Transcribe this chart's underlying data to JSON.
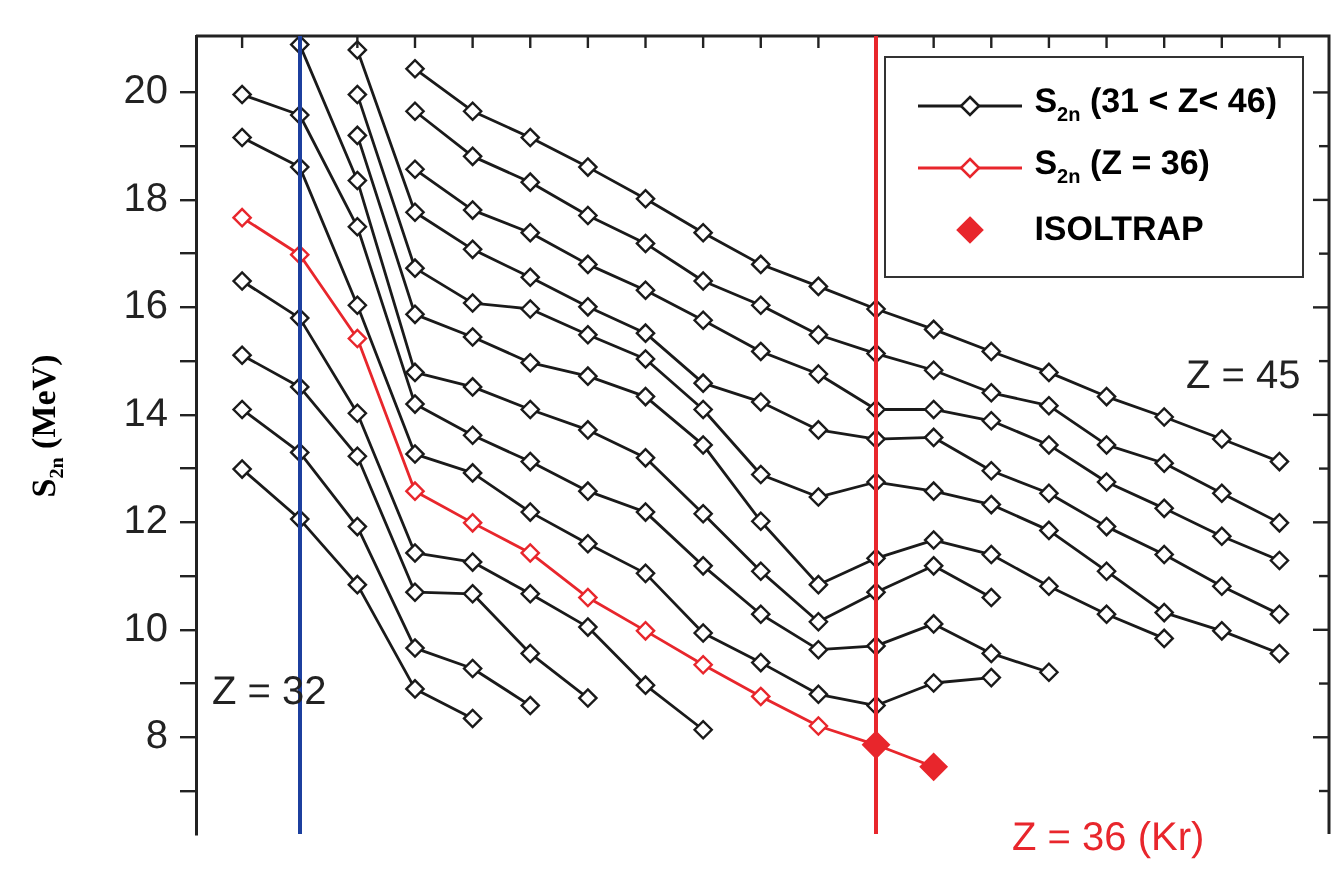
{
  "chart_data": {
    "type": "line",
    "ylabel": "S$_{2n}$ (MeV)",
    "categories": [
      null,
      null,
      null,
      null,
      null,
      null,
      null,
      null,
      null,
      null,
      null,
      null,
      null,
      null,
      null,
      null,
      null,
      null,
      null
    ],
    "series": [
      {
        "name": "S$_{2n}$ (31 < Z< 46)",
        "color": "#1a1a1a",
        "values": [
          null,
          null,
          null,
          20.44,
          19.65,
          19.16,
          18.61,
          18.02,
          17.39,
          16.8,
          16.39,
          15.97,
          15.59,
          15.18,
          14.79,
          14.34,
          13.96,
          13.55,
          13.13
        ]
      },
      {
        "color": "#1a1a1a",
        "values": [
          null,
          null,
          null,
          19.65,
          18.81,
          18.33,
          17.71,
          17.19,
          16.49,
          16.04,
          15.49,
          15.14,
          14.83,
          14.41,
          14.17,
          13.44,
          13.1,
          12.54,
          11.99
        ]
      },
      {
        "color": "#1a1a1a",
        "values": [
          null,
          null,
          null,
          18.57,
          17.81,
          17.39,
          16.8,
          16.32,
          15.76,
          15.18,
          14.76,
          14.1,
          14.1,
          13.89,
          13.44,
          12.75,
          12.26,
          11.74,
          11.29
        ]
      },
      {
        "color": "#1a1a1a",
        "values": [
          null,
          null,
          20.79,
          17.77,
          17.08,
          16.56,
          16.01,
          15.52,
          14.59,
          14.24,
          13.72,
          13.55,
          13.58,
          12.96,
          12.54,
          11.92,
          11.4,
          10.81,
          10.29
        ]
      },
      {
        "color": "#1a1a1a",
        "values": [
          null,
          null,
          19.96,
          16.73,
          16.08,
          15.97,
          15.49,
          15.04,
          14.1,
          12.89,
          12.47,
          12.75,
          12.58,
          12.33,
          11.85,
          11.09,
          10.32,
          9.98,
          9.56
        ]
      },
      {
        "color": "#1a1a1a",
        "values": [
          null,
          null,
          19.2,
          15.87,
          15.45,
          14.97,
          14.72,
          14.34,
          13.44,
          12.02,
          10.84,
          11.33,
          11.67,
          11.4,
          10.81,
          10.29,
          9.84,
          null,
          null
        ]
      },
      {
        "color": "#1a1a1a",
        "values": [
          null,
          20.89,
          18.36,
          14.79,
          14.52,
          14.1,
          13.72,
          13.2,
          12.16,
          11.09,
          10.15,
          10.7,
          11.19,
          10.6,
          null,
          null,
          null,
          null,
          null
        ]
      },
      {
        "color": "#1a1a1a",
        "values": [
          19.96,
          19.58,
          17.5,
          14.2,
          13.62,
          13.13,
          12.58,
          12.19,
          11.19,
          10.29,
          9.63,
          9.7,
          10.11,
          9.56,
          9.21,
          null,
          null,
          null,
          null
        ]
      },
      {
        "color": "#1a1a1a",
        "values": [
          19.16,
          18.61,
          16.04,
          13.27,
          12.92,
          12.19,
          11.6,
          11.05,
          9.94,
          9.39,
          8.8,
          8.59,
          9.01,
          9.11,
          null,
          null,
          null,
          null,
          null
        ]
      },
      {
        "name": "S$_{2n}$ (Z = 36)",
        "color": "#e8262c",
        "values": [
          17.67,
          16.98,
          15.42,
          12.58,
          11.99,
          11.43,
          10.6,
          9.98,
          9.35,
          8.76,
          8.21,
          7.86,
          7.45,
          null,
          null,
          null,
          null,
          null,
          null
        ]
      },
      {
        "color": "#1a1a1a",
        "values": [
          16.49,
          15.8,
          14.03,
          11.43,
          11.26,
          10.67,
          10.05,
          8.97,
          8.14,
          null,
          null,
          null,
          null,
          null,
          null,
          null,
          null,
          null,
          null
        ]
      },
      {
        "color": "#1a1a1a",
        "values": [
          15.11,
          14.52,
          13.23,
          10.7,
          10.67,
          9.56,
          8.73,
          null,
          null,
          null,
          null,
          null,
          null,
          null,
          null,
          null,
          null,
          null,
          null
        ]
      },
      {
        "color": "#1a1a1a",
        "values": [
          14.1,
          13.3,
          11.92,
          9.66,
          9.28,
          8.59,
          null,
          null,
          null,
          null,
          null,
          null,
          null,
          null,
          null,
          null,
          null,
          null,
          null
        ]
      },
      {
        "color": "#1a1a1a",
        "values": [
          12.99,
          12.06,
          10.84,
          8.9,
          8.35,
          null,
          null,
          null,
          null,
          null,
          null,
          null,
          null,
          null,
          null,
          null,
          null,
          null,
          null
        ]
      },
      {
        "name": "ISOLTRAP",
        "type": "scatter",
        "color": "#e8262c",
        "values": [
          null,
          null,
          null,
          null,
          null,
          null,
          null,
          null,
          null,
          null,
          null,
          7.86,
          7.45,
          null,
          null,
          null,
          null,
          null,
          null
        ]
      }
    ],
    "ylim": [
      6.2,
      21.05
    ],
    "yticks": [
      {
        "value": 7,
        "label": null
      },
      8,
      {
        "value": 9,
        "label": null
      },
      10,
      {
        "value": 11,
        "label": null
      },
      12,
      {
        "value": 13,
        "label": null
      },
      14,
      {
        "value": 15,
        "label": null
      },
      16,
      {
        "value": 17,
        "label": null
      },
      18,
      {
        "value": 19,
        "label": null
      },
      20
    ],
    "annotations": [
      "Z = 32",
      "Z = 45",
      "Z = 36 (Kr)"
    ],
    "marker": "diamond",
    "legend": "top right",
    "tick_labels": "y"
  }
}
